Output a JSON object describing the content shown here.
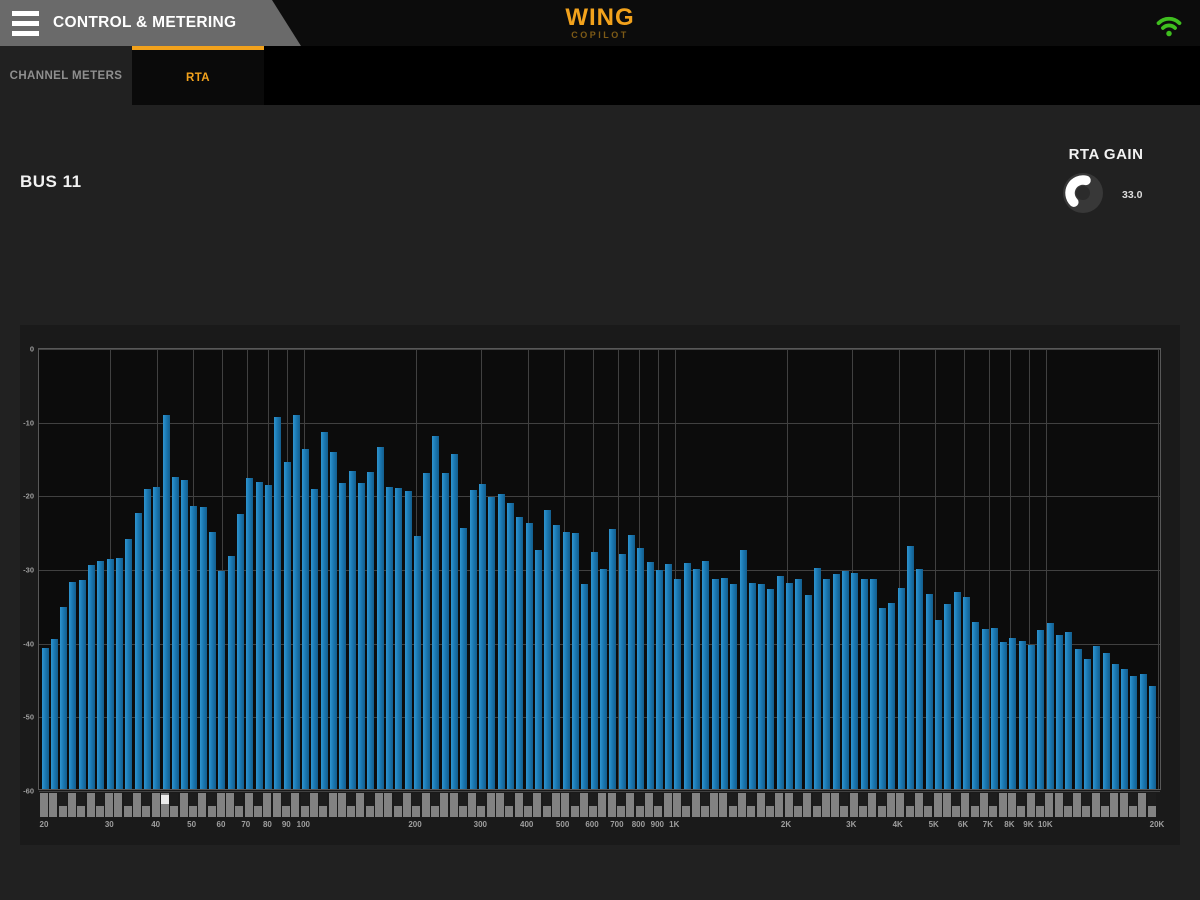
{
  "header": {
    "title": "CONTROL & METERING",
    "app_name": "WING",
    "app_subtitle": "COPILOT",
    "menu_icon": "hamburger-menu",
    "wifi_icon": "wifi-signal-connected",
    "colors": {
      "accent_orange": "#f2a21c",
      "wifi_green": "#3fbe1f"
    }
  },
  "tabs": [
    {
      "label": "CHANNEL METERS",
      "active": false
    },
    {
      "label": "RTA",
      "active": true
    }
  ],
  "rta_view": {
    "source_label": "BUS 11",
    "gain": {
      "label": "RTA GAIN",
      "value": "33.0",
      "min": 0,
      "max": 60
    }
  },
  "chart_data": {
    "type": "bar",
    "title": "",
    "xlabel": "",
    "ylabel": "",
    "x_axis": {
      "scale": "log",
      "fmin_hz": 19.27,
      "fmax_hz": 20500
    },
    "ylim": [
      -60,
      0
    ],
    "grid": true,
    "bar_color": "#1b7ab5",
    "y_ticks": [
      {
        "label": "0",
        "value": 0
      },
      {
        "label": "-10",
        "value": -10
      },
      {
        "label": "-20",
        "value": -20
      },
      {
        "label": "-30",
        "value": -30
      },
      {
        "label": "-40",
        "value": -40
      },
      {
        "label": "-50",
        "value": -50
      },
      {
        "label": "-60",
        "value": -60
      }
    ],
    "x_ticks": [
      {
        "label": "20",
        "f": 20
      },
      {
        "label": "30",
        "f": 30
      },
      {
        "label": "40",
        "f": 40
      },
      {
        "label": "50",
        "f": 50
      },
      {
        "label": "60",
        "f": 60
      },
      {
        "label": "70",
        "f": 70
      },
      {
        "label": "80",
        "f": 80
      },
      {
        "label": "90",
        "f": 90
      },
      {
        "label": "100",
        "f": 100
      },
      {
        "label": "200",
        "f": 200
      },
      {
        "label": "300",
        "f": 300
      },
      {
        "label": "400",
        "f": 400
      },
      {
        "label": "500",
        "f": 500
      },
      {
        "label": "600",
        "f": 600
      },
      {
        "label": "700",
        "f": 700
      },
      {
        "label": "800",
        "f": 800
      },
      {
        "label": "900",
        "f": 900
      },
      {
        "label": "1K",
        "f": 1000
      },
      {
        "label": "2K",
        "f": 2000
      },
      {
        "label": "3K",
        "f": 3000
      },
      {
        "label": "4K",
        "f": 4000
      },
      {
        "label": "5K",
        "f": 5000
      },
      {
        "label": "6K",
        "f": 6000
      },
      {
        "label": "7K",
        "f": 7000
      },
      {
        "label": "8K",
        "f": 8000
      },
      {
        "label": "9K",
        "f": 9000
      },
      {
        "label": "10K",
        "f": 10000
      },
      {
        "label": "20K",
        "f": 20000
      }
    ],
    "grid_freqs": [
      30,
      40,
      50,
      60,
      70,
      80,
      90,
      100,
      200,
      300,
      400,
      500,
      600,
      700,
      800,
      900,
      1000,
      2000,
      3000,
      4000,
      5000,
      6000,
      7000,
      8000,
      9000,
      10000,
      20000
    ],
    "bars": {
      "start_hz": 20,
      "bands_per_octave": 12,
      "levels_db": [
        -40.6,
        -39.3,
        -35.0,
        -31.6,
        -31.3,
        -29.3,
        -28.8,
        -28.5,
        -28.4,
        -25.8,
        -22.2,
        -19.0,
        -18.7,
        -9.0,
        -17.4,
        -17.8,
        -21.3,
        -21.5,
        -24.9,
        -30.1,
        -28.1,
        -22.4,
        -17.5,
        -18.0,
        -18.5,
        -9.2,
        -15.3,
        -8.9,
        -13.6,
        -19.0,
        -11.3,
        -14.0,
        -18.2,
        -16.6,
        -18.2,
        -16.7,
        -13.3,
        -18.7,
        -18.9,
        -19.3,
        -25.4,
        -16.8,
        -11.8,
        -16.8,
        -14.2,
        -24.3,
        -19.1,
        -18.3,
        -20.1,
        -19.7,
        -20.9,
        -22.8,
        -23.6,
        -27.3,
        -21.8,
        -23.9,
        -24.8,
        -25.0,
        -31.9,
        -27.5,
        -29.9,
        -24.4,
        -27.8,
        -25.2,
        -27.0,
        -28.9,
        -30.0,
        -29.2,
        -31.2,
        -29.0,
        -29.9,
        -28.8,
        -31.2,
        -31.1,
        -31.9,
        -27.3,
        -31.7,
        -31.9,
        -32.6,
        -30.8,
        -31.7,
        -31.2,
        -33.4,
        -29.7,
        -31.2,
        -30.5,
        -30.1,
        -30.4,
        -31.2,
        -31.2,
        -35.2,
        -34.5,
        -32.4,
        -26.7,
        -29.9,
        -33.2,
        -36.8,
        -34.6,
        -33.0,
        -33.7,
        -37.0,
        -38.0,
        -37.9,
        -39.8,
        -39.2,
        -39.6,
        -40.2,
        -38.1,
        -37.2,
        -38.8,
        -38.4,
        -40.7,
        -42.1,
        -40.3,
        -41.2,
        -42.7,
        -43.4,
        -44.4,
        -44.1,
        -45.7
      ]
    },
    "keyboard": {
      "black_note_offsets": [
        2,
        4,
        6,
        9,
        11
      ],
      "highlighted_key_index": 13
    }
  }
}
